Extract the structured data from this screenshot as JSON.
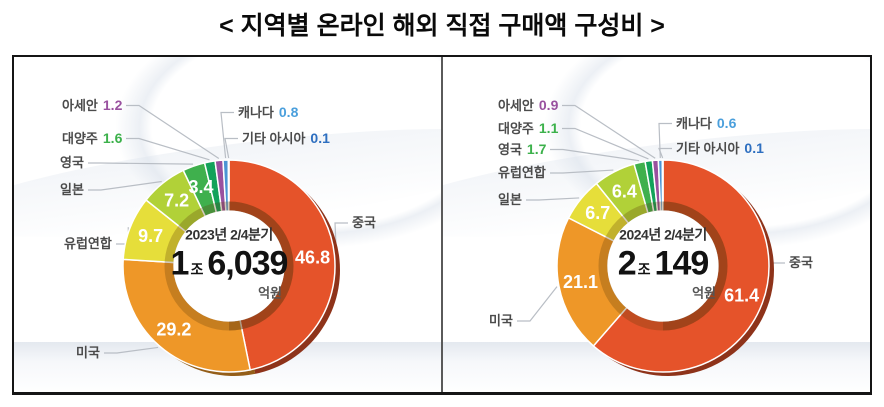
{
  "title": "< 지역별 온라인 해외 직접 구매액 구성비 >",
  "palette": {
    "segments": [
      "#e5532a",
      "#ee9728",
      "#e6de3a",
      "#b1d138",
      "#3fb04d",
      "#13a25a",
      "#99519f",
      "#4a94d4",
      "#2d5fb0"
    ],
    "callout_line": "#b9bec5",
    "callout_label_text": "#4b4b4b",
    "inside_value_text": "#ffffff",
    "center_period_text": "#333333",
    "center_amount_text": "#121212",
    "center_unit_text": "#555555"
  },
  "chart_data": [
    {
      "type": "pie",
      "variant": "donut",
      "title": "2023년 2/4분기",
      "legend_position": "callouts",
      "categories": [
        "중국",
        "미국",
        "유럽연합",
        "일본",
        "영국",
        "대양주",
        "아세안",
        "캐나다",
        "기타 아시아"
      ],
      "values": [
        46.8,
        29.2,
        9.7,
        7.2,
        3.4,
        1.6,
        1.2,
        0.8,
        0.1
      ],
      "center_label": {
        "period": "2023년 2/4분기",
        "amount_prefix": "1",
        "amount_prefix_unit": "조",
        "amount": "6,039",
        "amount_unit": "억원"
      },
      "callouts": [
        {
          "category": "아세안",
          "label": "아세안",
          "value": "1.2",
          "value_color": "#99519f"
        },
        {
          "category": "대양주",
          "label": "대양주",
          "value": "1.6",
          "value_color": "#3cb14b"
        },
        {
          "category": "영국",
          "label": "영국"
        },
        {
          "category": "일본",
          "label": "일본"
        },
        {
          "category": "유럽연합",
          "label": "유럽연합"
        },
        {
          "category": "미국",
          "label": "미국"
        },
        {
          "category": "캐나다",
          "label": "캐나다",
          "value": "0.8",
          "value_color": "#4a9fdc"
        },
        {
          "category": "기타 아시아",
          "label": "기타 아시아",
          "value": "0.1",
          "value_color": "#2e6fc0"
        },
        {
          "category": "중국",
          "label": "중국"
        }
      ]
    },
    {
      "type": "pie",
      "variant": "donut",
      "title": "2024년 2/4분기",
      "legend_position": "callouts",
      "categories": [
        "중국",
        "미국",
        "일본",
        "유럽연합",
        "영국",
        "대양주",
        "아세안",
        "캐나다",
        "기타 아시아"
      ],
      "values": [
        61.4,
        21.1,
        6.7,
        6.4,
        1.7,
        1.1,
        0.9,
        0.6,
        0.1
      ],
      "center_label": {
        "period": "2024년 2/4분기",
        "amount_prefix": "2",
        "amount_prefix_unit": "조",
        "amount": "149",
        "amount_unit": "억원"
      },
      "callouts": [
        {
          "category": "아세안",
          "label": "아세안",
          "value": "0.9",
          "value_color": "#99519f"
        },
        {
          "category": "대양주",
          "label": "대양주",
          "value": "1.1",
          "value_color": "#3cb14b"
        },
        {
          "category": "영국",
          "label": "영국",
          "value": "1.7",
          "value_color": "#3cb14b"
        },
        {
          "category": "유럽연합",
          "label": "유럽연합"
        },
        {
          "category": "일본",
          "label": "일본"
        },
        {
          "category": "미국",
          "label": "미국"
        },
        {
          "category": "캐나다",
          "label": "캐나다",
          "value": "0.6",
          "value_color": "#4a9fdc"
        },
        {
          "category": "기타 아시아",
          "label": "기타 아시아",
          "value": "0.1",
          "value_color": "#2e6fc0"
        },
        {
          "category": "중국",
          "label": "중국"
        }
      ]
    }
  ]
}
